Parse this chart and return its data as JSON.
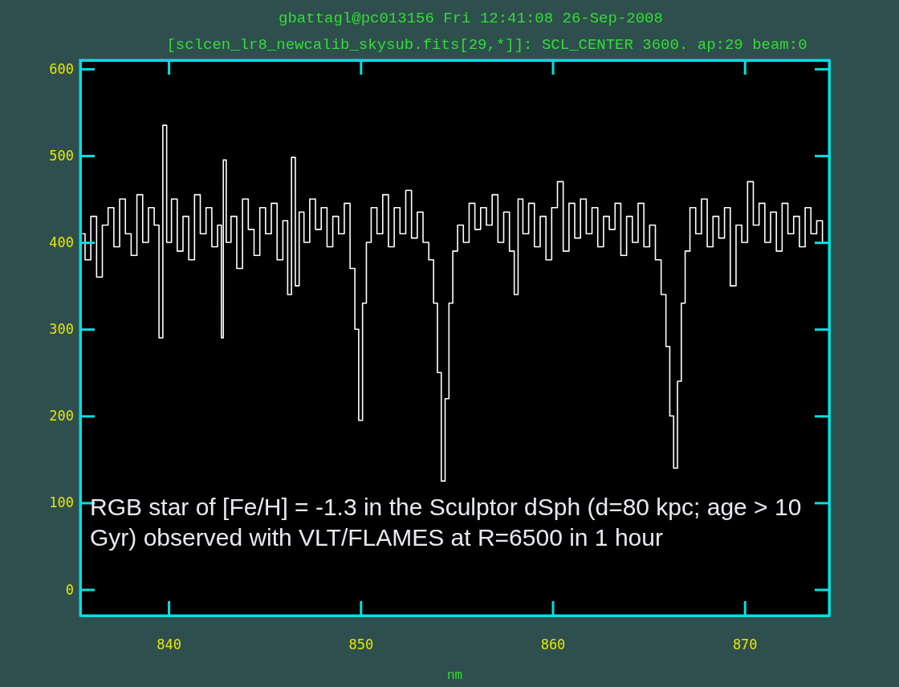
{
  "chart_data": {
    "type": "step",
    "title": "gbattagl@pc013156 Fri 12:41:08 26-Sep-2008",
    "subtitle": "[sclcen_lr8_newcalib_skysub.fits[29,*]]: SCL_CENTER 3600. ap:29 beam:0",
    "xlabel": "nm",
    "annotations": [
      "RGB star of [Fe/H] = -1.3 in the Sculptor dSph (d=80 kpc; age > 10 Gyr) observed with VLT/FLAMES at R=6500 in 1 hour"
    ],
    "xlim": [
      835.4,
      874.4
    ],
    "xticks": [
      840,
      850,
      860,
      870
    ],
    "ylim": [
      -30,
      610
    ],
    "yticks": [
      0,
      100,
      200,
      300,
      400,
      500,
      600
    ],
    "grid": false,
    "series": [
      {
        "color": "#ffffff",
        "x": [
          835.5,
          835.8,
          836.1,
          836.4,
          836.7,
          837.0,
          837.3,
          837.6,
          837.9,
          838.2,
          838.5,
          838.8,
          839.1,
          839.4,
          839.6,
          839.8,
          840.0,
          840.3,
          840.6,
          840.9,
          841.2,
          841.5,
          841.8,
          842.1,
          842.4,
          842.7,
          842.8,
          842.9,
          843.1,
          843.4,
          843.7,
          844.0,
          844.3,
          844.6,
          844.9,
          845.2,
          845.5,
          845.8,
          846.1,
          846.3,
          846.5,
          846.7,
          846.9,
          847.2,
          847.5,
          847.8,
          848.1,
          848.4,
          848.7,
          849.0,
          849.3,
          849.6,
          849.8,
          850.0,
          850.2,
          850.4,
          850.7,
          851.0,
          851.3,
          851.6,
          851.9,
          852.2,
          852.5,
          852.8,
          853.1,
          853.4,
          853.7,
          853.9,
          854.1,
          854.3,
          854.5,
          854.7,
          854.9,
          855.2,
          855.5,
          855.8,
          856.1,
          856.4,
          856.7,
          857.0,
          857.3,
          857.6,
          857.9,
          858.1,
          858.3,
          858.6,
          858.9,
          859.2,
          859.5,
          859.8,
          860.1,
          860.4,
          860.7,
          861.0,
          861.3,
          861.6,
          861.9,
          862.2,
          862.5,
          862.8,
          863.1,
          863.4,
          863.7,
          864.0,
          864.3,
          864.6,
          864.9,
          865.2,
          865.5,
          865.8,
          866.0,
          866.2,
          866.4,
          866.6,
          866.8,
          867.0,
          867.3,
          867.6,
          867.9,
          868.2,
          868.5,
          868.8,
          869.1,
          869.4,
          869.7,
          870.0,
          870.3,
          870.6,
          870.9,
          871.2,
          871.5,
          871.8,
          872.1,
          872.4,
          872.7,
          873.0,
          873.3,
          873.6,
          873.9,
          874.2
        ],
        "values": [
          410,
          380,
          430,
          360,
          420,
          440,
          395,
          450,
          410,
          385,
          455,
          400,
          440,
          420,
          290,
          535,
          400,
          450,
          390,
          430,
          380,
          455,
          410,
          440,
          395,
          420,
          290,
          495,
          400,
          430,
          370,
          450,
          415,
          385,
          440,
          410,
          445,
          380,
          425,
          340,
          498,
          350,
          435,
          400,
          450,
          415,
          440,
          395,
          430,
          410,
          445,
          370,
          300,
          195,
          330,
          400,
          440,
          410,
          455,
          395,
          440,
          410,
          460,
          405,
          435,
          400,
          380,
          330,
          250,
          125,
          220,
          330,
          390,
          420,
          400,
          445,
          415,
          440,
          420,
          455,
          400,
          435,
          390,
          340,
          450,
          410,
          445,
          395,
          430,
          380,
          440,
          470,
          390,
          445,
          405,
          450,
          410,
          440,
          395,
          430,
          415,
          445,
          385,
          430,
          400,
          445,
          395,
          420,
          380,
          340,
          280,
          200,
          140,
          240,
          330,
          390,
          440,
          410,
          450,
          395,
          430,
          405,
          440,
          350,
          420,
          400,
          470,
          420,
          445,
          400,
          435,
          390,
          445,
          410,
          430,
          395,
          440,
          410,
          425,
          400
        ]
      }
    ]
  }
}
